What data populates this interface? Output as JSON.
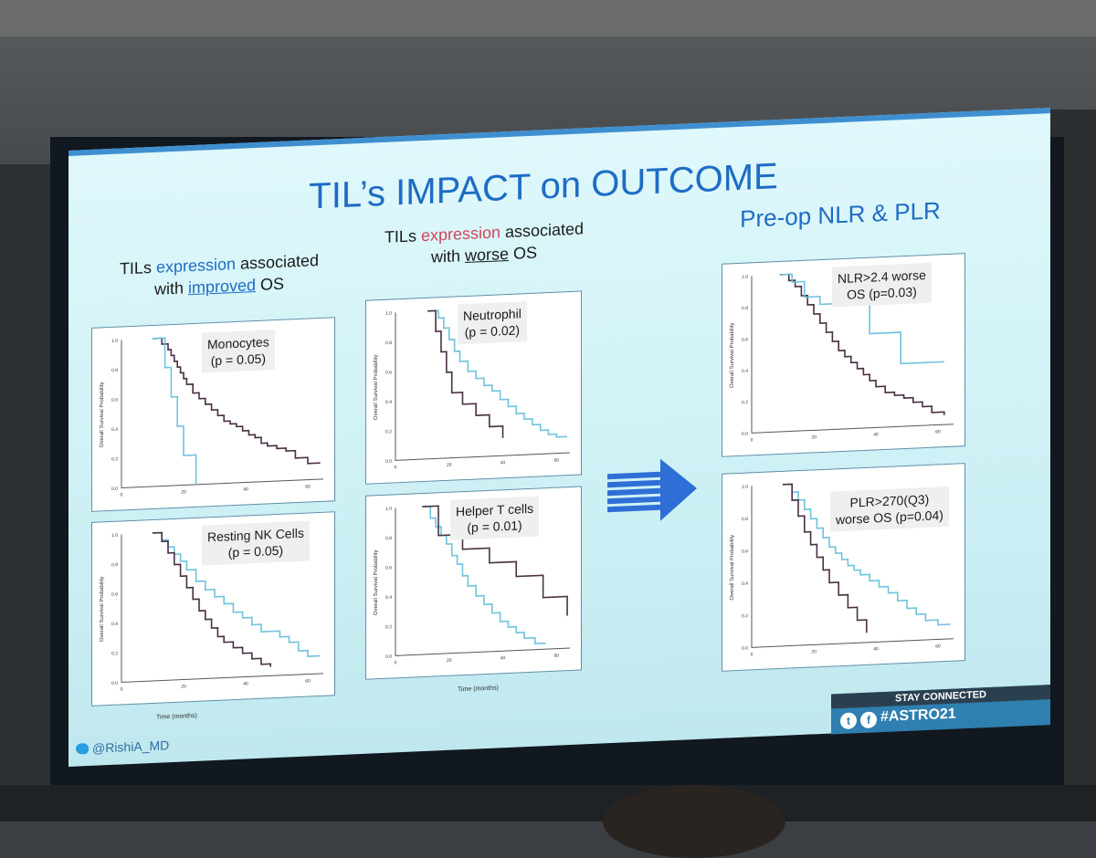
{
  "slide": {
    "title": "TIL’s IMPACT on OUTCOME",
    "col1": {
      "pre": "TILs ",
      "hl": "expression",
      "mid": " associated",
      "line2a": "with ",
      "ul": "improved",
      "line2b": " OS"
    },
    "col2": {
      "pre": "TILs ",
      "hl": "expression",
      "mid": " associated",
      "line2a": "with ",
      "ul": "worse",
      "line2b": " OS"
    },
    "col3": {
      "title": "Pre-op NLR & PLR"
    },
    "footer_handle": "@RishiA_MD",
    "stay_connected": "STAY CONNECTED",
    "hashtag": "#ASTRO21",
    "x_axis_label": "Time (months)",
    "y_axis_label": "Overall Survival Probability"
  },
  "colors": {
    "accent": "#1e6cc4",
    "highlight_red": "#d1455a",
    "curve_blue": "#6fc3dc",
    "curve_dark": "#4a2f45"
  },
  "chart_data": [
    {
      "type": "line",
      "panel": "p1",
      "legend_lines": [
        "Monocytes",
        "(p = 0.05)"
      ],
      "xlim": [
        0,
        65
      ],
      "ylim": [
        0,
        1.0
      ],
      "xticks": [
        "0",
        "20",
        "40",
        "60"
      ],
      "yticks": [
        "0.0",
        "0.2",
        "0.4",
        "0.6",
        "0.8",
        "1.0"
      ],
      "series": [
        {
          "color": "dark",
          "x": [
            10,
            13,
            15,
            16,
            17,
            18,
            19,
            20,
            21,
            23,
            25,
            27,
            29,
            31,
            33,
            35,
            37,
            39,
            41,
            43,
            45,
            47,
            50,
            53,
            56,
            60,
            64
          ],
          "y": [
            1.0,
            0.96,
            0.92,
            0.88,
            0.84,
            0.8,
            0.76,
            0.72,
            0.68,
            0.62,
            0.58,
            0.54,
            0.5,
            0.46,
            0.42,
            0.4,
            0.38,
            0.35,
            0.32,
            0.3,
            0.26,
            0.24,
            0.22,
            0.2,
            0.15,
            0.11,
            0.11
          ]
        },
        {
          "color": "blue",
          "x": [
            10,
            14,
            16,
            18,
            20,
            24
          ],
          "y": [
            1.0,
            0.8,
            0.6,
            0.4,
            0.2,
            0.0
          ]
        }
      ]
    },
    {
      "type": "line",
      "panel": "p2",
      "legend_lines": [
        "Resting NK Cells",
        "(p = 0.05)"
      ],
      "xlim": [
        0,
        65
      ],
      "ylim": [
        0,
        1.0
      ],
      "xticks": [
        "0",
        "20",
        "40",
        "60"
      ],
      "yticks": [
        "0.0",
        "0.2",
        "0.4",
        "0.6",
        "0.8",
        "1.0"
      ],
      "series": [
        {
          "color": "blue",
          "x": [
            10,
            13,
            15,
            17,
            19,
            21,
            24,
            27,
            30,
            33,
            36,
            39,
            42,
            45,
            48,
            51,
            54,
            57,
            60,
            64
          ],
          "y": [
            1.0,
            0.95,
            0.9,
            0.85,
            0.8,
            0.74,
            0.66,
            0.6,
            0.55,
            0.5,
            0.44,
            0.4,
            0.35,
            0.3,
            0.3,
            0.26,
            0.22,
            0.16,
            0.12,
            0.12
          ]
        },
        {
          "color": "dark",
          "x": [
            10,
            13,
            15,
            17,
            19,
            21,
            23,
            25,
            27,
            29,
            31,
            33,
            36,
            39,
            42,
            45,
            48
          ],
          "y": [
            1.0,
            0.94,
            0.86,
            0.78,
            0.7,
            0.62,
            0.54,
            0.46,
            0.4,
            0.34,
            0.28,
            0.24,
            0.2,
            0.16,
            0.12,
            0.08,
            0.06
          ]
        }
      ]
    },
    {
      "type": "line",
      "panel": "p3",
      "legend_lines": [
        "Neutrophil",
        "(p = 0.02)"
      ],
      "xlim": [
        0,
        65
      ],
      "ylim": [
        0,
        1.0
      ],
      "xticks": [
        "0",
        "20",
        "40",
        "60"
      ],
      "yticks": [
        "0.0",
        "0.2",
        "0.4",
        "0.6",
        "0.8",
        "1.0"
      ],
      "series": [
        {
          "color": "blue",
          "x": [
            12,
            16,
            18,
            20,
            22,
            24,
            27,
            30,
            33,
            36,
            39,
            42,
            45,
            48,
            51,
            54,
            57,
            60,
            64
          ],
          "y": [
            1.0,
            0.95,
            0.88,
            0.8,
            0.72,
            0.65,
            0.58,
            0.53,
            0.48,
            0.44,
            0.38,
            0.33,
            0.28,
            0.24,
            0.2,
            0.16,
            0.13,
            0.11,
            0.11
          ]
        },
        {
          "color": "dark",
          "x": [
            12,
            15,
            17,
            19,
            21,
            25,
            30,
            35,
            40
          ],
          "y": [
            1.0,
            0.86,
            0.72,
            0.58,
            0.44,
            0.36,
            0.28,
            0.2,
            0.12
          ]
        }
      ]
    },
    {
      "type": "line",
      "panel": "p4",
      "legend_lines": [
        "Helper T cells",
        "(p = 0.01)"
      ],
      "xlim": [
        0,
        65
      ],
      "ylim": [
        0,
        1.0
      ],
      "xticks": [
        "0",
        "20",
        "40",
        "60"
      ],
      "yticks": [
        "0.0",
        "0.2",
        "0.4",
        "0.6",
        "0.8",
        "1.0"
      ],
      "series": [
        {
          "color": "blue",
          "x": [
            10,
            13,
            15,
            17,
            19,
            21,
            23,
            25,
            27,
            30,
            33,
            36,
            39,
            42,
            45,
            48,
            52,
            56
          ],
          "y": [
            1.0,
            0.92,
            0.86,
            0.8,
            0.74,
            0.66,
            0.6,
            0.52,
            0.45,
            0.38,
            0.32,
            0.26,
            0.2,
            0.16,
            0.12,
            0.08,
            0.04,
            0.04
          ]
        },
        {
          "color": "dark",
          "x": [
            10,
            16,
            25,
            35,
            45,
            55,
            64
          ],
          "y": [
            1.0,
            0.8,
            0.7,
            0.6,
            0.5,
            0.35,
            0.22
          ]
        }
      ]
    },
    {
      "type": "line",
      "panel": "p5",
      "legend_lines": [
        "NLR>2.4 worse",
        "OS (p=0.03)"
      ],
      "xlim": [
        0,
        65
      ],
      "ylim": [
        0,
        1.0
      ],
      "xticks": [
        "0",
        "20",
        "40",
        "60"
      ],
      "yticks": [
        "0.0",
        "0.2",
        "0.4",
        "0.6",
        "0.8",
        "1.0"
      ],
      "series": [
        {
          "color": "dark",
          "x": [
            9,
            12,
            14,
            16,
            18,
            20,
            22,
            24,
            26,
            28,
            30,
            32,
            34,
            36,
            38,
            40,
            43,
            46,
            49,
            52,
            55,
            58,
            62
          ],
          "y": [
            1.0,
            0.96,
            0.92,
            0.86,
            0.8,
            0.74,
            0.68,
            0.62,
            0.56,
            0.5,
            0.46,
            0.42,
            0.38,
            0.34,
            0.3,
            0.26,
            0.22,
            0.2,
            0.18,
            0.15,
            0.12,
            0.08,
            0.06
          ]
        },
        {
          "color": "blue",
          "x": [
            9,
            13,
            17,
            22,
            38,
            48,
            62
          ],
          "y": [
            1.0,
            0.95,
            0.85,
            0.8,
            0.6,
            0.4,
            0.4
          ]
        }
      ]
    },
    {
      "type": "line",
      "panel": "p6",
      "legend_lines": [
        "PLR>270(Q3)",
        "worse OS (p=0.04)"
      ],
      "xlim": [
        0,
        65
      ],
      "ylim": [
        0,
        1.0
      ],
      "xticks": [
        "0",
        "20",
        "40",
        "60"
      ],
      "yticks": [
        "0.0",
        "0.2",
        "0.4",
        "0.6",
        "0.8",
        "1.0"
      ],
      "series": [
        {
          "color": "blue",
          "x": [
            10,
            13,
            15,
            17,
            19,
            21,
            23,
            25,
            27,
            29,
            31,
            33,
            35,
            38,
            41,
            44,
            47,
            50,
            53,
            56,
            60,
            64
          ],
          "y": [
            1.0,
            0.95,
            0.9,
            0.84,
            0.78,
            0.72,
            0.66,
            0.6,
            0.56,
            0.52,
            0.48,
            0.45,
            0.42,
            0.38,
            0.34,
            0.3,
            0.25,
            0.2,
            0.16,
            0.12,
            0.09,
            0.09
          ]
        },
        {
          "color": "dark",
          "x": [
            10,
            13,
            15,
            17,
            19,
            21,
            23,
            25,
            28,
            31,
            34,
            37
          ],
          "y": [
            1.0,
            0.9,
            0.8,
            0.7,
            0.62,
            0.54,
            0.46,
            0.38,
            0.3,
            0.22,
            0.14,
            0.06
          ]
        }
      ]
    }
  ]
}
